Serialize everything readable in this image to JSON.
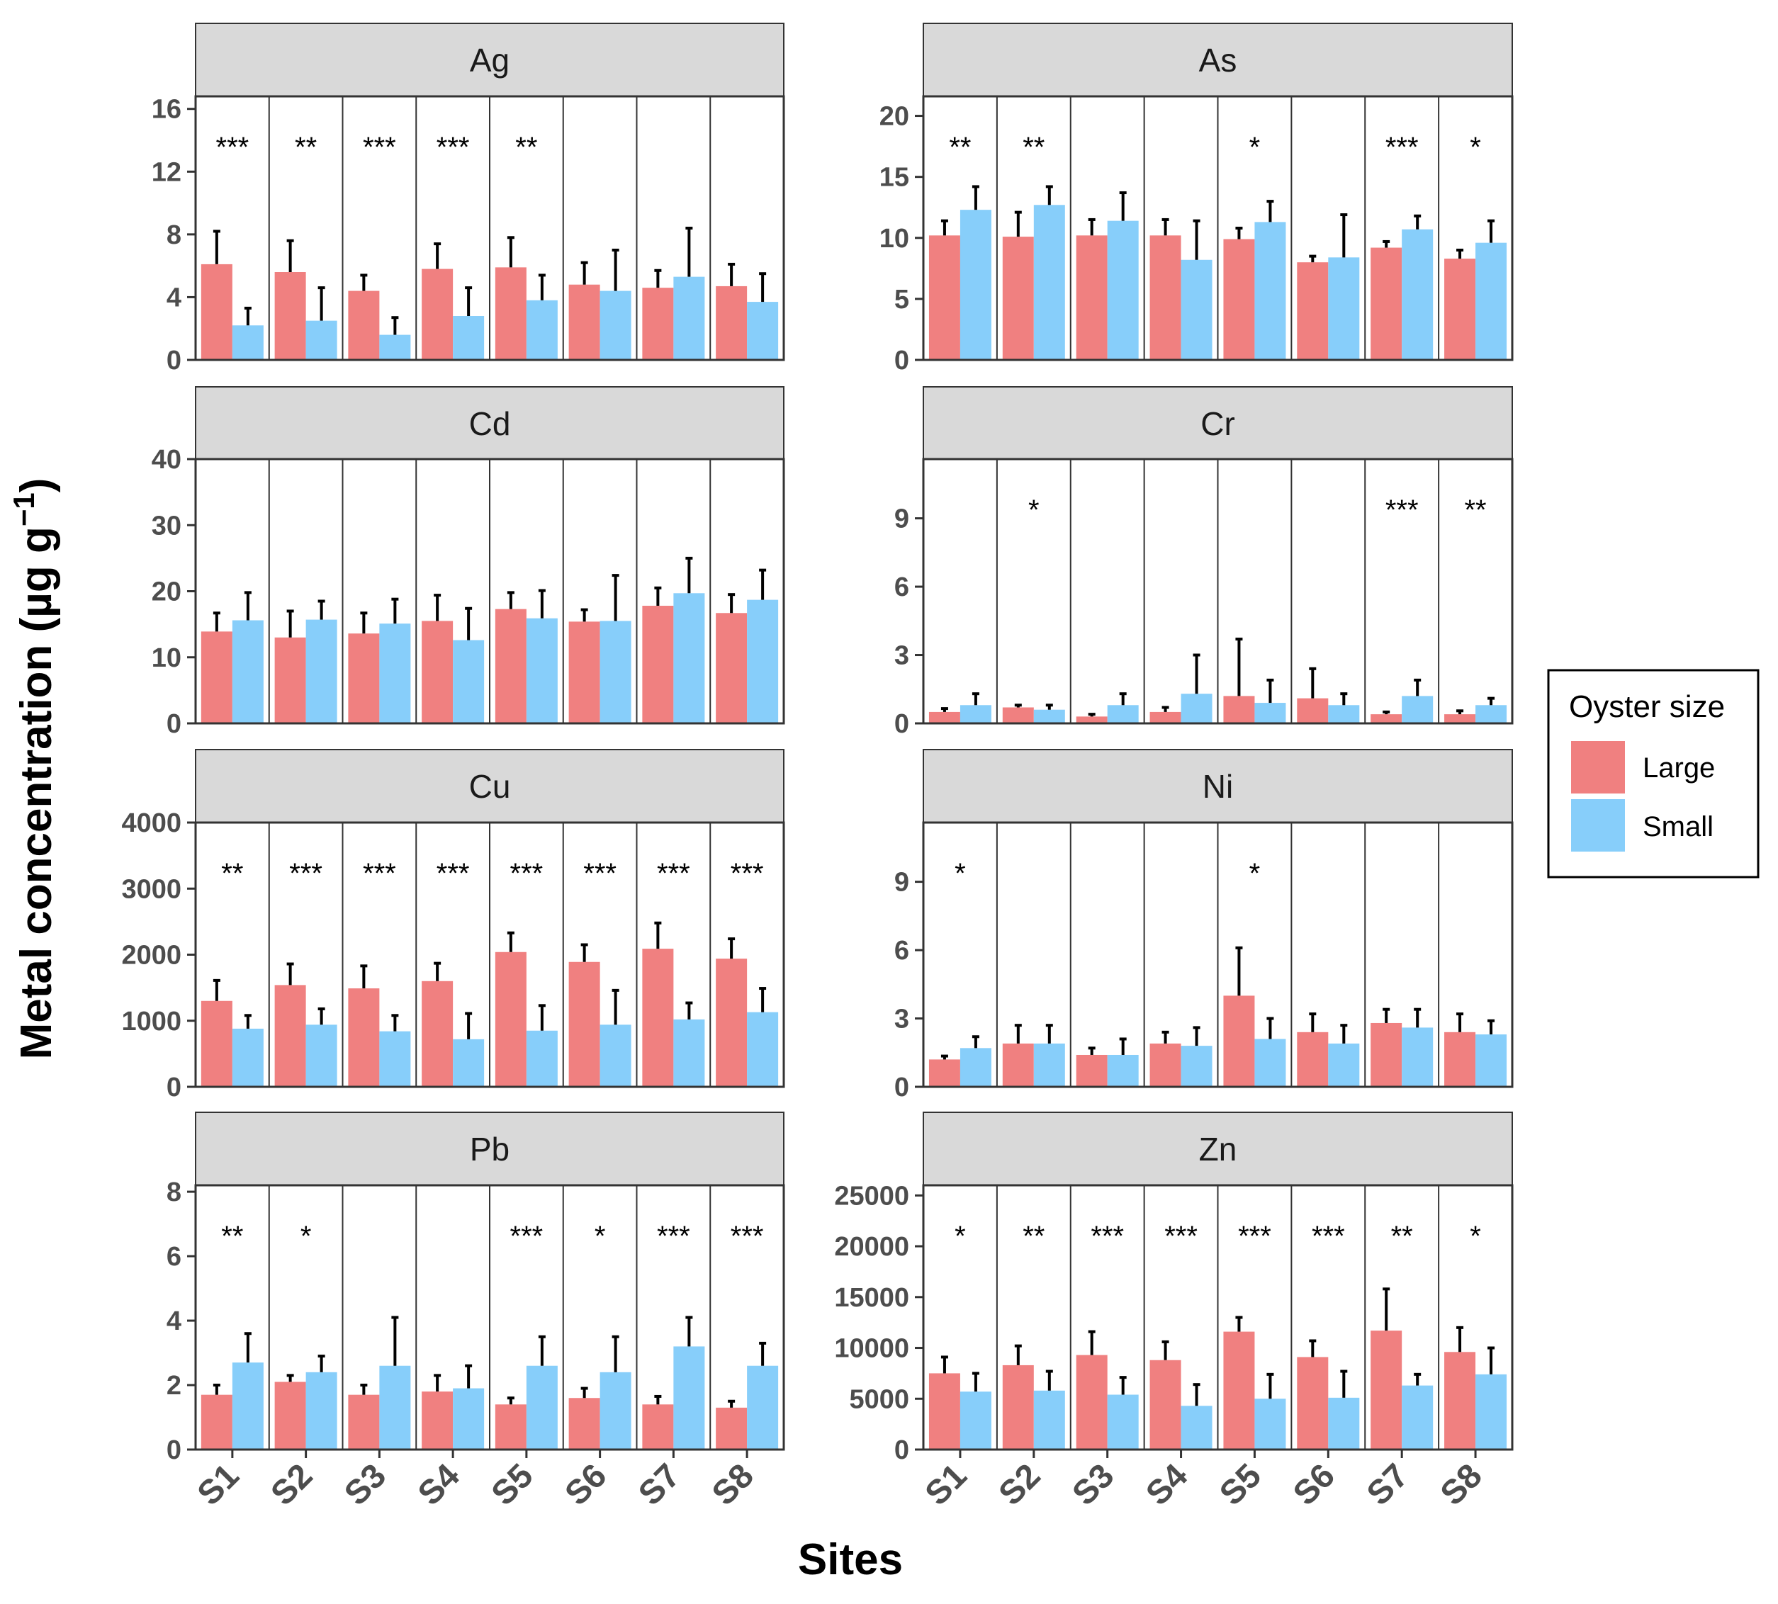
{
  "chart_data": {
    "type": "bar",
    "title": "",
    "xlabel": "Sites",
    "ylabel": "Metal concentration (µg g",
    "ylabel_superscript": "−1",
    "ylabel_close": ")",
    "categories": [
      "S1",
      "S2",
      "S3",
      "S4",
      "S5",
      "S6",
      "S7",
      "S8"
    ],
    "legend": {
      "title": "Oyster size",
      "position": "right",
      "entries": [
        {
          "name": "Large",
          "color": "#F08080"
        },
        {
          "name": "Small",
          "color": "#87CEFA"
        }
      ]
    },
    "panels": [
      {
        "metal": "Ag",
        "ylim": [
          0,
          16.8
        ],
        "yticks": [
          0,
          4,
          8,
          12,
          16
        ],
        "series": [
          {
            "name": "Large",
            "values": [
              6.1,
              5.6,
              4.4,
              5.8,
              5.9,
              4.8,
              4.6,
              4.7
            ],
            "errors": [
              2.1,
              2.0,
              1.0,
              1.6,
              1.9,
              1.4,
              1.1,
              1.4
            ]
          },
          {
            "name": "Small",
            "values": [
              2.2,
              2.5,
              1.6,
              2.8,
              3.8,
              4.4,
              5.3,
              3.7
            ],
            "errors": [
              1.1,
              2.1,
              1.1,
              1.8,
              1.6,
              2.6,
              3.1,
              1.8
            ]
          }
        ],
        "significance": [
          "***",
          "**",
          "***",
          "***",
          "**",
          "",
          "",
          ""
        ]
      },
      {
        "metal": "As",
        "ylim": [
          0,
          21.6
        ],
        "yticks": [
          0,
          5,
          10,
          15,
          20
        ],
        "series": [
          {
            "name": "Large",
            "values": [
              10.2,
              10.1,
              10.2,
              10.2,
              9.9,
              8.0,
              9.2,
              8.3
            ],
            "errors": [
              1.2,
              2.0,
              1.3,
              1.3,
              0.9,
              0.5,
              0.5,
              0.7
            ]
          },
          {
            "name": "Small",
            "values": [
              12.3,
              12.7,
              11.4,
              8.2,
              11.3,
              8.4,
              10.7,
              9.6
            ],
            "errors": [
              1.9,
              1.5,
              2.3,
              3.2,
              1.7,
              3.5,
              1.1,
              1.8
            ]
          }
        ],
        "significance": [
          "**",
          "**",
          "",
          "",
          "*",
          "",
          "***",
          "*"
        ]
      },
      {
        "metal": "Cd",
        "ylim": [
          0,
          40
        ],
        "yticks": [
          0,
          10,
          20,
          30,
          40
        ],
        "series": [
          {
            "name": "Large",
            "values": [
              13.9,
              13.0,
              13.6,
              15.5,
              17.3,
              15.4,
              17.8,
              16.7
            ],
            "errors": [
              2.8,
              4.0,
              3.1,
              3.9,
              2.5,
              1.8,
              2.7,
              2.8
            ]
          },
          {
            "name": "Small",
            "values": [
              15.6,
              15.7,
              15.1,
              12.6,
              15.9,
              15.5,
              19.7,
              18.7
            ],
            "errors": [
              4.2,
              2.8,
              3.7,
              4.8,
              4.2,
              6.9,
              5.3,
              4.5
            ]
          }
        ],
        "significance": [
          "",
          "",
          "",
          "",
          "",
          "",
          "",
          ""
        ]
      },
      {
        "metal": "Cr",
        "ylim": [
          0,
          11.6
        ],
        "yticks": [
          0,
          3,
          6,
          9
        ],
        "series": [
          {
            "name": "Large",
            "values": [
              0.5,
              0.7,
              0.3,
              0.5,
              1.2,
              1.1,
              0.4,
              0.4
            ],
            "errors": [
              0.15,
              0.1,
              0.1,
              0.2,
              2.5,
              1.3,
              0.1,
              0.15
            ]
          },
          {
            "name": "Small",
            "values": [
              0.8,
              0.6,
              0.8,
              1.3,
              0.9,
              0.8,
              1.2,
              0.8
            ],
            "errors": [
              0.5,
              0.2,
              0.5,
              1.7,
              1.0,
              0.5,
              0.7,
              0.3
            ]
          }
        ],
        "significance": [
          "",
          "*",
          "",
          "",
          "",
          "",
          "***",
          "**"
        ]
      },
      {
        "metal": "Cu",
        "ylim": [
          0,
          4000
        ],
        "yticks": [
          0,
          1000,
          2000,
          3000,
          4000
        ],
        "series": [
          {
            "name": "Large",
            "values": [
              1300,
              1540,
              1490,
              1600,
              2040,
              1890,
              2090,
              1940
            ],
            "errors": [
              310,
              320,
              340,
              270,
              290,
              260,
              390,
              300
            ]
          },
          {
            "name": "Small",
            "values": [
              880,
              940,
              840,
              720,
              850,
              940,
              1020,
              1130
            ],
            "errors": [
              200,
              240,
              240,
              390,
              380,
              520,
              250,
              360
            ]
          }
        ],
        "significance": [
          "**",
          "***",
          "***",
          "***",
          "***",
          "***",
          "***",
          "***"
        ]
      },
      {
        "metal": "Ni",
        "ylim": [
          0,
          11.6
        ],
        "yticks": [
          0,
          3,
          6,
          9
        ],
        "series": [
          {
            "name": "Large",
            "values": [
              1.2,
              1.9,
              1.4,
              1.9,
              4.0,
              2.4,
              2.8,
              2.4
            ],
            "errors": [
              0.15,
              0.8,
              0.3,
              0.5,
              2.1,
              0.8,
              0.6,
              0.8
            ]
          },
          {
            "name": "Small",
            "values": [
              1.7,
              1.9,
              1.4,
              1.8,
              2.1,
              1.9,
              2.6,
              2.3
            ],
            "errors": [
              0.5,
              0.8,
              0.7,
              0.8,
              0.9,
              0.8,
              0.8,
              0.6
            ]
          }
        ],
        "significance": [
          "*",
          "",
          "",
          "",
          "*",
          "",
          "",
          ""
        ]
      },
      {
        "metal": "Pb",
        "ylim": [
          0,
          8.2
        ],
        "yticks": [
          0,
          2,
          4,
          6,
          8
        ],
        "series": [
          {
            "name": "Large",
            "values": [
              1.7,
              2.1,
              1.7,
              1.8,
              1.4,
              1.6,
              1.4,
              1.3
            ],
            "errors": [
              0.3,
              0.2,
              0.3,
              0.5,
              0.2,
              0.3,
              0.25,
              0.2
            ]
          },
          {
            "name": "Small",
            "values": [
              2.7,
              2.4,
              2.6,
              1.9,
              2.6,
              2.4,
              3.2,
              2.6
            ],
            "errors": [
              0.9,
              0.5,
              1.5,
              0.7,
              0.9,
              1.1,
              0.9,
              0.7
            ]
          }
        ],
        "significance": [
          "**",
          "*",
          "",
          "",
          "***",
          "*",
          "***",
          "***"
        ]
      },
      {
        "metal": "Zn",
        "ylim": [
          0,
          26000
        ],
        "yticks": [
          0,
          5000,
          10000,
          15000,
          20000,
          25000
        ],
        "series": [
          {
            "name": "Large",
            "values": [
              7500,
              8300,
              9300,
              8800,
              11600,
              9100,
              11700,
              9600
            ],
            "errors": [
              1600,
              1900,
              2300,
              1800,
              1400,
              1600,
              4100,
              2400
            ]
          },
          {
            "name": "Small",
            "values": [
              5700,
              5800,
              5400,
              4300,
              5000,
              5100,
              6300,
              7400
            ],
            "errors": [
              1800,
              1900,
              1700,
              2100,
              2400,
              2600,
              1100,
              2600
            ]
          }
        ],
        "significance": [
          "*",
          "**",
          "***",
          "***",
          "***",
          "***",
          "**",
          "*"
        ]
      }
    ]
  }
}
